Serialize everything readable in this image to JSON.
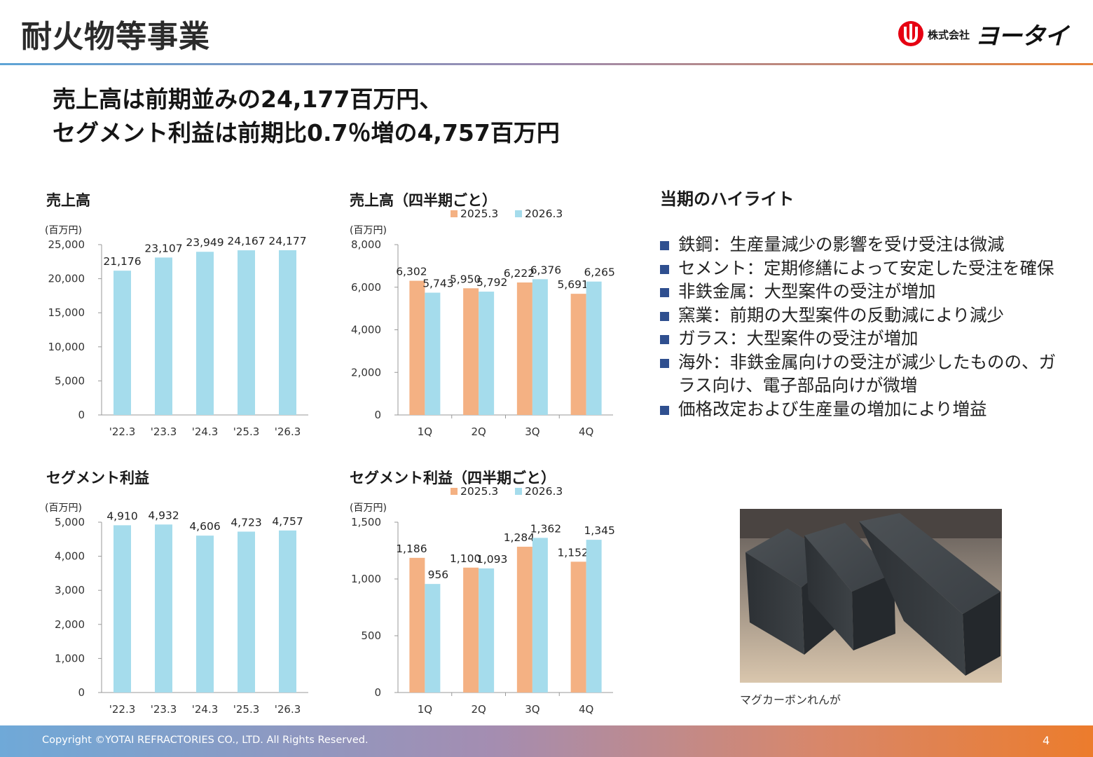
{
  "header": {
    "title": "耐火物等事業",
    "logo": {
      "company": "株式会社",
      "name": "ヨータイ"
    }
  },
  "headline": {
    "line1": "売上高は前期並みの24,177百万円、",
    "line2": "セグメント利益は前期比0.7％増の4,757百万円"
  },
  "charts": {
    "sales_annual_title": "売上高",
    "sales_quarterly_title": "売上高（四半期ごと）",
    "profit_annual_title": "セグメント利益",
    "profit_quarterly_title": "セグメント利益（四半期ごと）"
  },
  "chart_data": [
    {
      "id": "sales-annual",
      "type": "bar",
      "title": "売上高",
      "unit": "(百万円)",
      "categories": [
        "'22.3",
        "'23.3",
        "'24.3",
        "'25.3",
        "'26.3"
      ],
      "series": [
        {
          "values": [
            21176,
            23107,
            23949,
            24167,
            24177
          ],
          "color": "#a5dcec"
        }
      ],
      "ylim": [
        0,
        25000
      ],
      "yticks": [
        0,
        5000,
        10000,
        15000,
        20000,
        25000
      ],
      "data_labels": true
    },
    {
      "id": "sales-quarterly",
      "type": "bar",
      "title": "売上高（四半期ごと）",
      "unit": "(百万円)",
      "categories": [
        "1Q",
        "2Q",
        "3Q",
        "4Q"
      ],
      "series": [
        {
          "name": "2025.3",
          "values": [
            6302,
            5950,
            6222,
            5691
          ],
          "color": "#f4b183"
        },
        {
          "name": "2026.3",
          "values": [
            5743,
            5792,
            6376,
            6265
          ],
          "color": "#a5dcec"
        }
      ],
      "ylim": [
        0,
        8000
      ],
      "yticks": [
        0,
        2000,
        4000,
        6000,
        8000
      ],
      "legend": "top",
      "data_labels": true
    },
    {
      "id": "profit-annual",
      "type": "bar",
      "title": "セグメント利益",
      "unit": "(百万円)",
      "categories": [
        "'22.3",
        "'23.3",
        "'24.3",
        "'25.3",
        "'26.3"
      ],
      "series": [
        {
          "values": [
            4910,
            4932,
            4606,
            4723,
            4757
          ],
          "color": "#a5dcec"
        }
      ],
      "ylim": [
        0,
        5000
      ],
      "yticks": [
        0,
        1000,
        2000,
        3000,
        4000,
        5000
      ],
      "data_labels": true
    },
    {
      "id": "profit-quarterly",
      "type": "bar",
      "title": "セグメント利益（四半期ごと）",
      "unit": "(百万円)",
      "categories": [
        "1Q",
        "2Q",
        "3Q",
        "4Q"
      ],
      "series": [
        {
          "name": "2025.3",
          "values": [
            1186,
            1100,
            1284,
            1152
          ],
          "color": "#f4b183"
        },
        {
          "name": "2026.3",
          "values": [
            956,
            1093,
            1362,
            1345
          ],
          "color": "#a5dcec"
        }
      ],
      "ylim": [
        0,
        1500
      ],
      "yticks": [
        0,
        500,
        1000,
        1500
      ],
      "legend": "top",
      "data_labels": true
    }
  ],
  "highlights": {
    "title": "当期のハイライト",
    "items": [
      "鉄鋼：生産量減少の影響を受け受注は微減",
      "セメント：定期修繕によって安定した受注を確保",
      "非鉄金属：大型案件の受注が増加",
      "窯業：前期の大型案件の反動減により減少",
      "ガラス：大型案件の受注が増加",
      "海外：非鉄金属向けの受注が減少したものの、ガラス向け、電子部品向けが微増",
      "価格改定および生産量の増加により増益"
    ]
  },
  "photo": {
    "caption": "マグカーボンれんが"
  },
  "footer": {
    "copyright": "Copyright ©YOTAI REFRACTORIES CO., LTD. All Rights Reserved.",
    "page": "4"
  }
}
